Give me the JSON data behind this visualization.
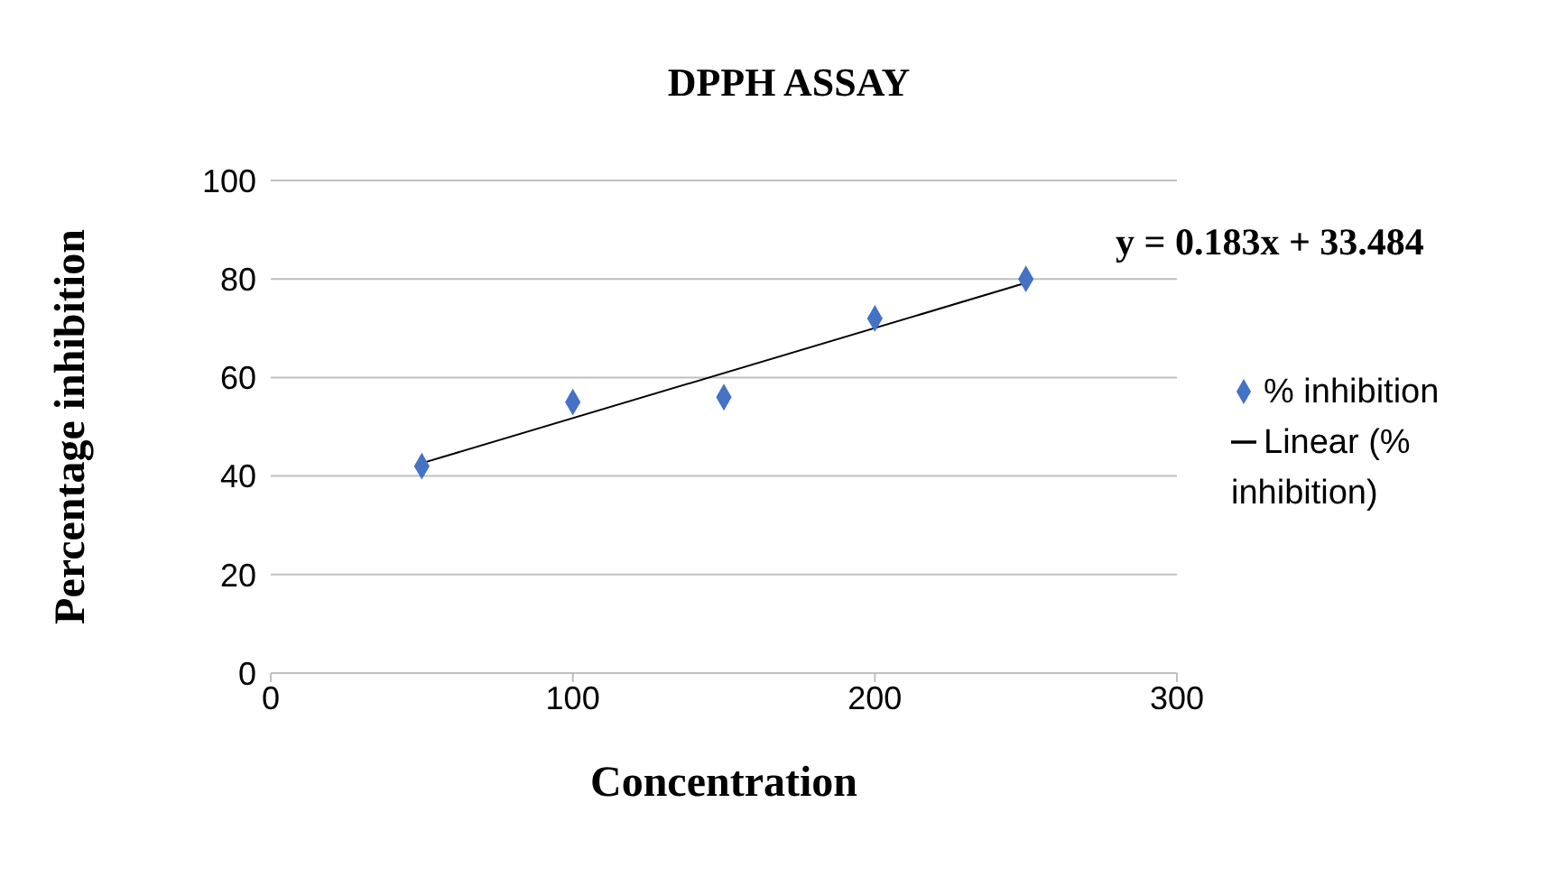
{
  "chart_data": {
    "type": "scatter",
    "title": "DPPH ASSAY",
    "xlabel": "Concentration",
    "ylabel": "Percentage  inhibition",
    "annotations": [
      "y = 0.183x + 33.484"
    ],
    "x": [
      50,
      100,
      150,
      200,
      250
    ],
    "series": [
      {
        "name": "% inhibition",
        "color": "#4472c4",
        "values": [
          42,
          55,
          56,
          72,
          80
        ],
        "marker": "diamond"
      },
      {
        "name": "Linear (% inhibition)",
        "type": "line",
        "color": "#000000",
        "x": [
          50,
          250
        ],
        "values": [
          42.6,
          79.2
        ],
        "marker": "none",
        "line_style": "solid"
      }
    ],
    "xlim": [
      0,
      300
    ],
    "xticks": [
      0,
      100,
      200,
      300
    ],
    "ylim": [
      0,
      100
    ],
    "yticks": [
      0,
      20,
      40,
      60,
      80,
      100
    ],
    "grid": "y",
    "legend": "right"
  }
}
